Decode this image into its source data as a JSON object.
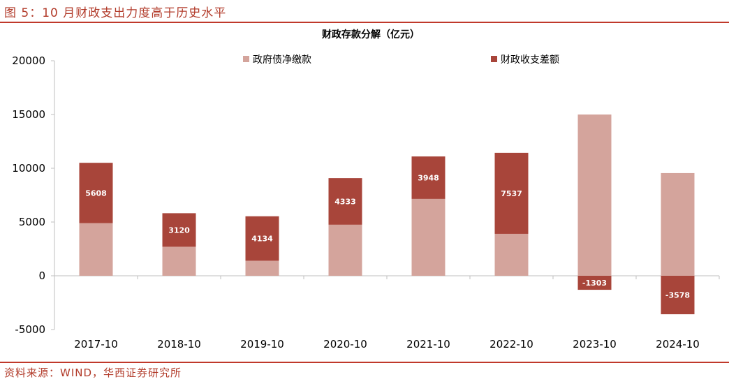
{
  "figure_title": "图 5：10 月财政支出力度高于历史水平",
  "source": "资料来源：WIND，华西证券研究所",
  "colors": {
    "accent": "#c0392b",
    "gov_debt": "#d4a49c",
    "fiscal_balance": "#a8453a"
  },
  "chart_data": {
    "type": "bar",
    "stacked": true,
    "title": "财政存款分解（亿元）",
    "categories": [
      "2017-10",
      "2018-10",
      "2019-10",
      "2020-10",
      "2021-10",
      "2022-10",
      "2023-10",
      "2024-10"
    ],
    "series": [
      {
        "name": "政府债净缴款",
        "values": [
          4900,
          2700,
          1400,
          4750,
          7150,
          3900,
          15000,
          9550
        ]
      },
      {
        "name": "财政收支差额",
        "values": [
          5608,
          3120,
          4134,
          4333,
          3948,
          7537,
          -1303,
          -3578
        ]
      }
    ],
    "data_labels": [
      "5608",
      "3120",
      "4134",
      "4333",
      "3948",
      "7537",
      "-1303",
      "-3578"
    ],
    "ylim": [
      -5000,
      20000
    ],
    "yticks": [
      -5000,
      0,
      5000,
      10000,
      15000,
      20000
    ],
    "ytick_labels": [
      "-5000",
      "0",
      "5000",
      "10000",
      "15000",
      "20000"
    ],
    "xlabel": "",
    "ylabel": "",
    "legend": "top",
    "grid": false
  }
}
